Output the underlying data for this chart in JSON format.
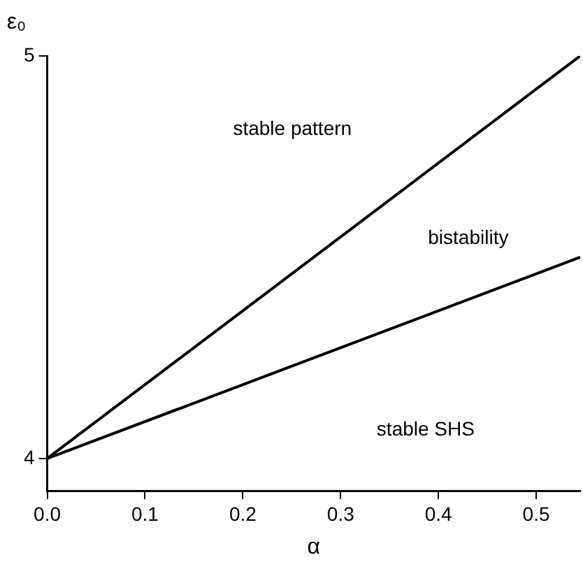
{
  "chart_data": {
    "type": "line",
    "xlabel": "α",
    "ylabel": "ε₀",
    "series": [
      {
        "color": "#000000",
        "values": [
          4,
          5
        ]
      },
      {
        "color": "#000000",
        "values": [
          4,
          4.5
        ]
      }
    ],
    "x": [
      0,
      0.545
    ],
    "xlim": [
      0,
      0.545
    ],
    "xticks": [
      {
        "value": 0,
        "label": "0.0"
      },
      0.1,
      0.2,
      0.3,
      0.4,
      0.5
    ],
    "ylim": [
      3.92,
      5.0
    ],
    "yticks": [
      4,
      5
    ],
    "annotations": [
      "stable pattern",
      "bistability",
      "stable SHS"
    ],
    "grid": false,
    "legend": false,
    "marker": "none",
    "line_style": "solid"
  }
}
